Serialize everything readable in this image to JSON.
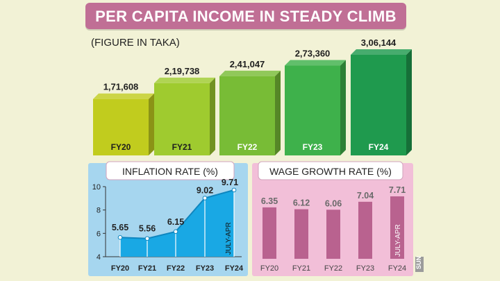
{
  "title": "PER CAPITA INCOME IN STEADY CLIMB",
  "unit_note": "(FIGURE IN TAKA)",
  "watermark": "SUN",
  "colors": {
    "background": "#f2f2d6",
    "title_banner": "#c06f95",
    "panel_blue": "#a6d6ef",
    "panel_pink": "#f2bfd8",
    "area_fill": "#19a8e4",
    "bar_pink": "#b9628f",
    "bar_greens": [
      "#c1cc1e",
      "#9fcb2f",
      "#78bc36",
      "#3eb14b",
      "#1f9a4e"
    ]
  },
  "chart_data": [
    {
      "type": "bar",
      "title": "PER CAPITA INCOME IN STEADY CLIMB",
      "subtitle": "(FIGURE IN TAKA)",
      "categories": [
        "FY20",
        "FY21",
        "FY22",
        "FY23",
        "FY24"
      ],
      "values": [
        171608,
        219738,
        241047,
        273360,
        306144
      ],
      "value_labels": [
        "1,71,608",
        "2,19,738",
        "2,41,047",
        "2,73,360",
        "3,06,144"
      ],
      "style": "3d-blocks"
    },
    {
      "type": "area",
      "title": "INFLATION RATE (%)",
      "categories": [
        "FY20",
        "FY21",
        "FY22",
        "FY23",
        "FY24"
      ],
      "values": [
        5.65,
        5.56,
        6.15,
        9.02,
        9.71
      ],
      "value_labels": [
        "5.65",
        "5.56",
        "6.15",
        "9.02",
        "9.71"
      ],
      "ylim": [
        4,
        10
      ],
      "yticks": [
        "4",
        "6",
        "8",
        "10"
      ],
      "note": "JULY-APR",
      "note_category": "FY24"
    },
    {
      "type": "bar",
      "title": "WAGE GROWTH RATE (%)",
      "categories": [
        "FY20",
        "FY21",
        "FY22",
        "FY23",
        "FY24"
      ],
      "values": [
        6.35,
        6.12,
        6.06,
        7.04,
        7.71
      ],
      "value_labels": [
        "6.35",
        "6.12",
        "6.06",
        "7.04",
        "7.71"
      ],
      "note": "JULY-APR",
      "note_category": "FY24"
    }
  ]
}
